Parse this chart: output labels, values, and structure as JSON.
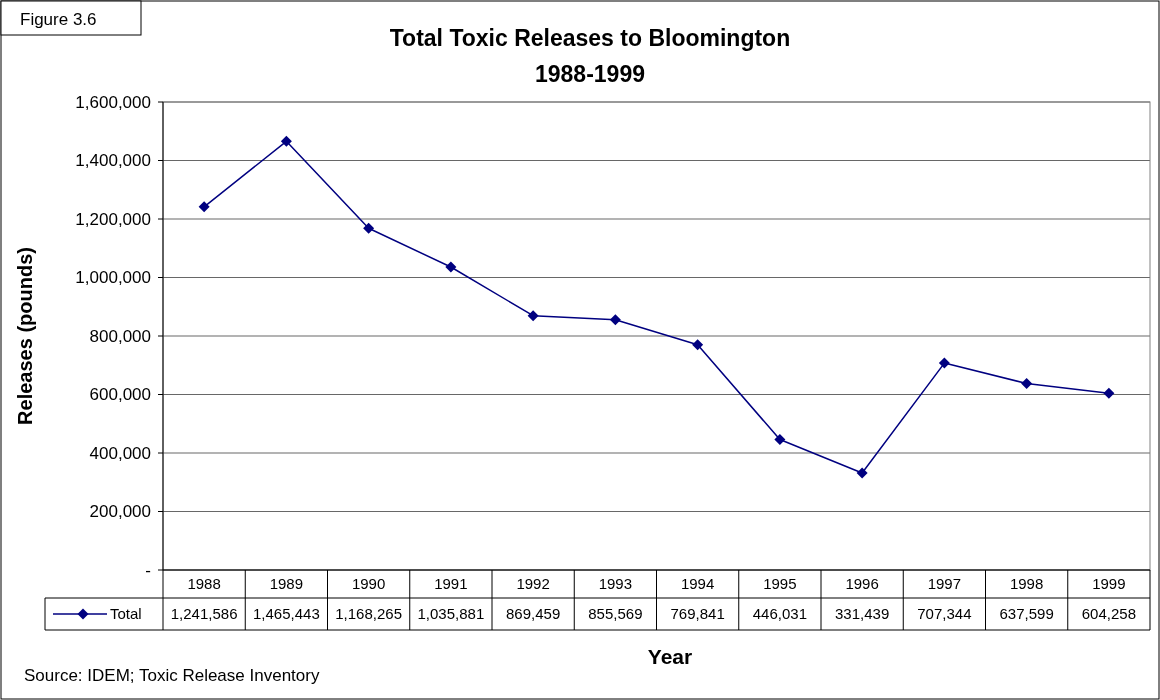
{
  "chart_data": {
    "type": "line",
    "title": "Total Toxic Releases to Bloomington",
    "subtitle": "1988-1999",
    "xlabel": "Year",
    "ylabel": "Releases (pounds)",
    "annotations": [
      "Figure 3.6",
      "Source: IDEM; Toxic Release Inventory"
    ],
    "categories": [
      "1988",
      "1989",
      "1990",
      "1991",
      "1992",
      "1993",
      "1994",
      "1995",
      "1996",
      "1997",
      "1998",
      "1999"
    ],
    "series": [
      {
        "name": "Total",
        "color": "#000080",
        "values": [
          1241586,
          1465443,
          1168265,
          1035881,
          869459,
          855569,
          769841,
          446031,
          331439,
          707344,
          637599,
          604258
        ],
        "value_labels": [
          "1,241,586",
          "1,465,443",
          "1,168,265",
          "1,035,881",
          "869,459",
          "855,569",
          "769,841",
          "446,031",
          "331,439",
          "707,344",
          "637,599",
          "604,258"
        ]
      }
    ],
    "ylim": [
      0,
      1600000
    ],
    "yticks": [
      {
        "value": 0,
        "label": "-"
      },
      {
        "value": 200000,
        "label": "200,000"
      },
      {
        "value": 400000,
        "label": "400,000"
      },
      {
        "value": 600000,
        "label": "600,000"
      },
      {
        "value": 800000,
        "label": "800,000"
      },
      {
        "value": 1000000,
        "label": "1,000,000"
      },
      {
        "value": 1200000,
        "label": "1,200,000"
      },
      {
        "value": 1400000,
        "label": "1,400,000"
      },
      {
        "value": 1600000,
        "label": "1,600,000"
      }
    ],
    "grid": "y",
    "legend": "bottom",
    "marker": "diamond",
    "line_style": "solid"
  }
}
